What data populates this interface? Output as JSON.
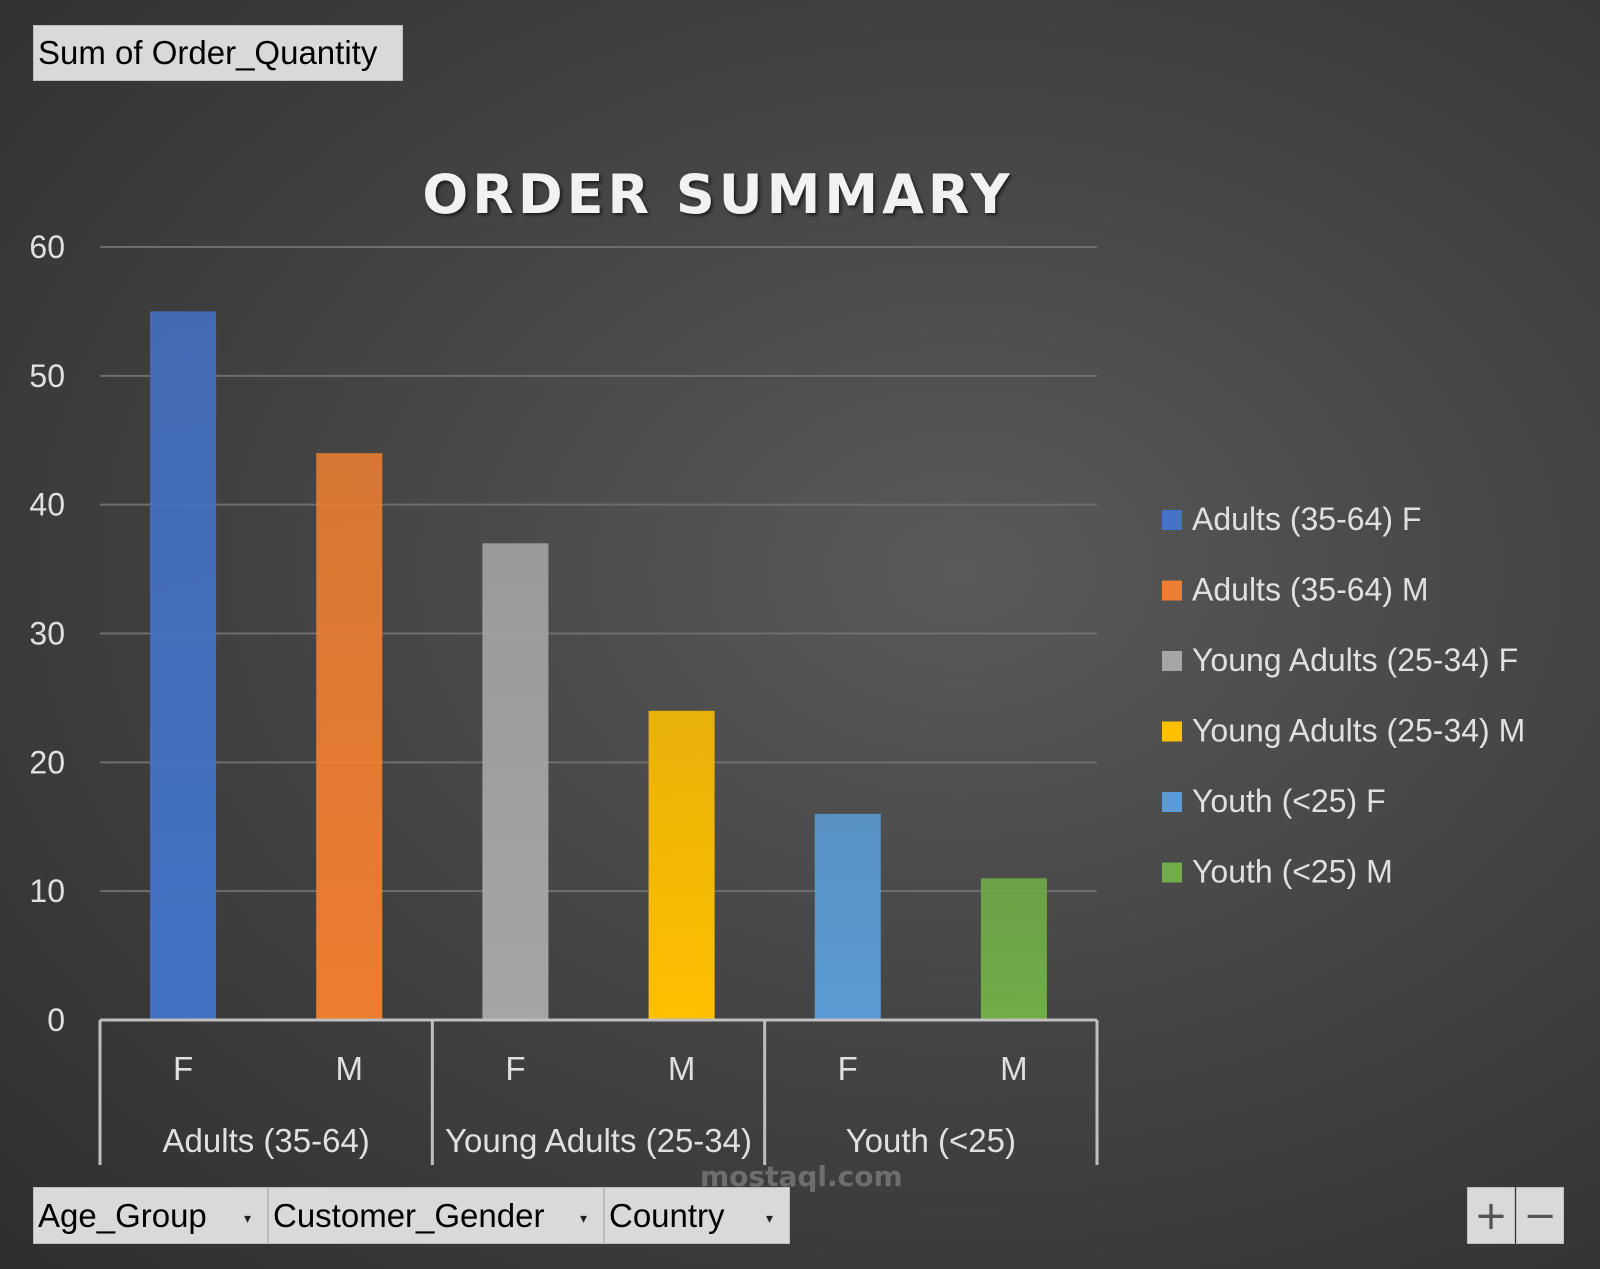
{
  "value_field": {
    "label": "Sum of Order_Quantity"
  },
  "axis_fields": [
    {
      "label": "Age_Group"
    },
    {
      "label": "Customer_Gender"
    },
    {
      "label": "Country"
    }
  ],
  "zoom": {
    "plus": "+",
    "minus": "−"
  },
  "watermark": "mostaql.com",
  "colors": {
    "adults_f": "#4472c4",
    "adults_m": "#ed7d31",
    "young_f": "#a5a5a5",
    "young_m": "#ffc000",
    "youth_f": "#5b9bd5",
    "youth_m": "#70ad47"
  },
  "chart_data": {
    "type": "bar",
    "title": "ORDER SUMMARY",
    "xlabel": "",
    "ylabel": "",
    "ylim": [
      0,
      60
    ],
    "yticks": [
      0,
      10,
      20,
      30,
      40,
      50,
      60
    ],
    "grid": true,
    "legend_position": "right",
    "groups": [
      {
        "label": "Adults (35-64)",
        "categories": [
          "F",
          "M"
        ]
      },
      {
        "label": "Young Adults (25-34)",
        "categories": [
          "F",
          "M"
        ]
      },
      {
        "label": "Youth (<25)",
        "categories": [
          "F",
          "M"
        ]
      }
    ],
    "series": [
      {
        "name": "Adults (35-64) F",
        "group": 0,
        "category": "F",
        "value": 55,
        "color": "#4472c4"
      },
      {
        "name": "Adults (35-64) M",
        "group": 0,
        "category": "M",
        "value": 44,
        "color": "#ed7d31"
      },
      {
        "name": "Young Adults (25-34) F",
        "group": 1,
        "category": "F",
        "value": 37,
        "color": "#a5a5a5"
      },
      {
        "name": "Young Adults (25-34) M",
        "group": 1,
        "category": "M",
        "value": 24,
        "color": "#ffc000"
      },
      {
        "name": "Youth (<25) F",
        "group": 2,
        "category": "F",
        "value": 16,
        "color": "#5b9bd5"
      },
      {
        "name": "Youth (<25) M",
        "group": 2,
        "category": "M",
        "value": 11,
        "color": "#70ad47"
      }
    ]
  }
}
